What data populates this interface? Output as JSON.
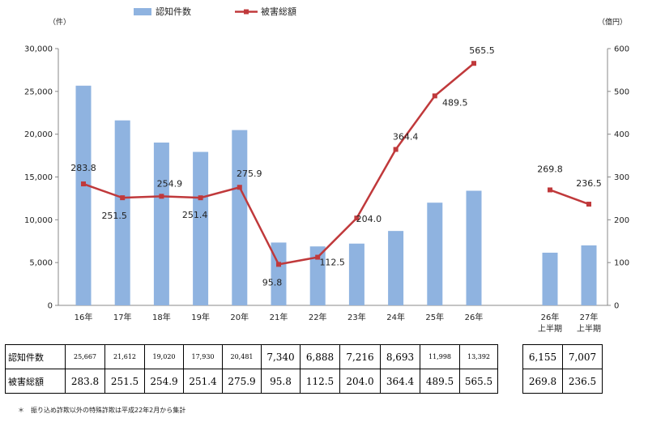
{
  "chart_data": {
    "type": "bar",
    "categories": [
      "16年",
      "17年",
      "18年",
      "19年",
      "20年",
      "21年",
      "22年",
      "23年",
      "24年",
      "25年",
      "26年"
    ],
    "half_categories": [
      [
        "26年",
        "上半期"
      ],
      [
        "27年",
        "上半期"
      ]
    ],
    "series": [
      {
        "name": "認知件数",
        "type": "bar",
        "axis": "left",
        "color": "#8fb3e0",
        "values": [
          25667,
          21612,
          19020,
          17930,
          20481,
          7340,
          6888,
          7216,
          8693,
          11998,
          13392
        ],
        "half_values": [
          6155,
          7007
        ]
      },
      {
        "name": "被害総額",
        "type": "line",
        "axis": "right",
        "color": "#c0393b",
        "values": [
          283.8,
          251.5,
          254.9,
          251.4,
          275.9,
          95.8,
          112.5,
          204.0,
          364.4,
          489.5,
          565.5
        ],
        "half_values": [
          269.8,
          236.5
        ],
        "labels": [
          "283.8",
          "251.5",
          "254.9",
          "251.4",
          "275.9",
          "95.8",
          "112.5",
          "204.0",
          "364.4",
          "489.5",
          "565.5"
        ],
        "half_labels": [
          "269.8",
          "236.5"
        ]
      }
    ],
    "y_left": {
      "unit": "（件）",
      "min": 0,
      "max": 30000,
      "ticks": [
        "0",
        "5,000",
        "10,000",
        "15,000",
        "20,000",
        "25,000",
        "30,000"
      ]
    },
    "y_right": {
      "unit": "（億円）",
      "min": 0,
      "max": 600,
      "ticks": [
        "0",
        "100",
        "200",
        "300",
        "400",
        "500",
        "600"
      ]
    },
    "legend_position": "top"
  },
  "table": {
    "rows": [
      {
        "label": "認知件数",
        "cells": [
          "25,667",
          "21,612",
          "19,020",
          "17,930",
          "20,481",
          "7,340",
          "6,888",
          "7,216",
          "8,693",
          "11,998",
          "13,392"
        ],
        "half_cells": [
          "6,155",
          "7,007"
        ]
      },
      {
        "label": "被害総額",
        "cells": [
          "283.8",
          "251.5",
          "254.9",
          "251.4",
          "275.9",
          "95.8",
          "112.5",
          "204.0",
          "364.4",
          "489.5",
          "565.5"
        ],
        "half_cells": [
          "269.8",
          "236.5"
        ]
      }
    ]
  },
  "footnote": "＊　振り込め詐欺以外の特殊詐欺は平成22年2月から集計"
}
